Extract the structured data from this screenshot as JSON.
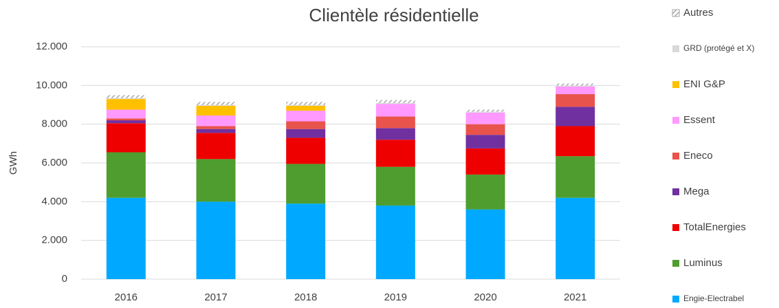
{
  "chart_data": {
    "type": "stacked_bar",
    "title": "Clientèle résidentielle",
    "y_label": "GWh",
    "categories": [
      "2016",
      "2017",
      "2018",
      "2019",
      "2020",
      "2021"
    ],
    "series": [
      {
        "name": "Engie-Electrabel",
        "color": "#00a9ff",
        "values": [
          4200,
          4000,
          3900,
          3800,
          3600,
          4200
        ]
      },
      {
        "name": "Luminus",
        "color": "#4f9d2f",
        "values": [
          2350,
          2200,
          2050,
          2000,
          1800,
          2150
        ]
      },
      {
        "name": "TotalEnergies",
        "color": "#ee0000",
        "values": [
          1500,
          1350,
          1350,
          1400,
          1350,
          1550
        ]
      },
      {
        "name": "Mega",
        "color": "#7030a0",
        "values": [
          150,
          200,
          450,
          600,
          700,
          1000
        ]
      },
      {
        "name": "Eneco",
        "color": "#e8534b",
        "values": [
          100,
          150,
          400,
          600,
          550,
          650
        ]
      },
      {
        "name": "Essent",
        "color": "#ff99ff",
        "values": [
          450,
          550,
          550,
          650,
          600,
          400
        ]
      },
      {
        "name": "ENI G&P",
        "color": "#ffc000",
        "values": [
          550,
          500,
          250,
          0,
          0,
          0
        ]
      },
      {
        "name": "GRD (protégé et X)",
        "color": "#d9d9d9",
        "values": [
          50,
          50,
          50,
          50,
          50,
          50
        ]
      },
      {
        "name": "Autres",
        "color": "#a6a6a6",
        "hatch": true,
        "values": [
          150,
          150,
          150,
          150,
          100,
          100
        ]
      }
    ],
    "ylim": [
      0,
      12000
    ],
    "yticks": [
      0,
      {
        "value": 2000,
        "label": "2.000"
      },
      {
        "value": 4000,
        "label": "4.000"
      },
      {
        "value": 6000,
        "label": "6.000"
      },
      {
        "value": 8000,
        "label": "8.000"
      },
      {
        "value": 10000,
        "label": "10.000"
      },
      {
        "value": 12000,
        "label": "12.000"
      }
    ],
    "grid": true,
    "legend": "right"
  }
}
